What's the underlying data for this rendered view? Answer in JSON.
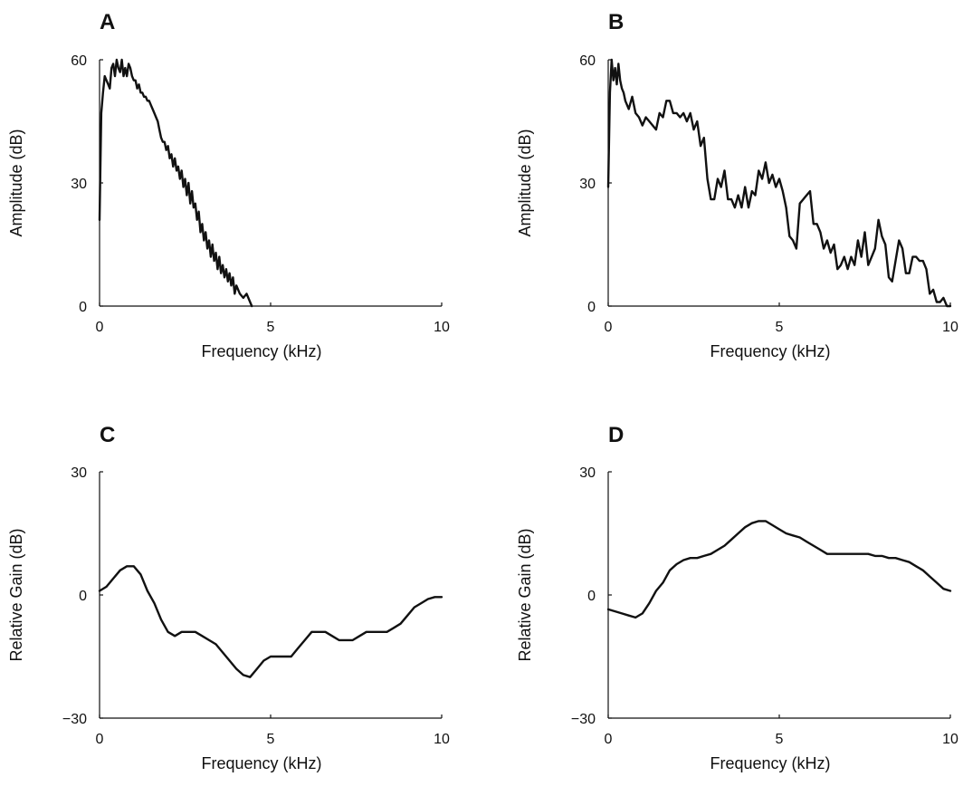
{
  "chart_data": [
    {
      "panel_label": "A",
      "type": "line",
      "xlabel": "Frequency (kHz)",
      "ylabel": "Amplitude (dB)",
      "xlim": [
        0,
        10
      ],
      "ylim": [
        0,
        60
      ],
      "xticks": [
        "0",
        "5",
        "10"
      ],
      "yticks": [
        "0",
        "30",
        "60"
      ],
      "grid": false,
      "series": [
        {
          "x": [
            0.0,
            0.05,
            0.1,
            0.15,
            0.2,
            0.25,
            0.3,
            0.35,
            0.4,
            0.45,
            0.5,
            0.55,
            0.6,
            0.65,
            0.7,
            0.75,
            0.8,
            0.85,
            0.9,
            0.95,
            1.0,
            1.05,
            1.1,
            1.15,
            1.2,
            1.25,
            1.3,
            1.35,
            1.4,
            1.45,
            1.5,
            1.55,
            1.6,
            1.65,
            1.7,
            1.75,
            1.8,
            1.85,
            1.9,
            1.95,
            2.0,
            2.05,
            2.1,
            2.15,
            2.2,
            2.25,
            2.3,
            2.35,
            2.4,
            2.45,
            2.5,
            2.55,
            2.6,
            2.65,
            2.7,
            2.75,
            2.8,
            2.85,
            2.9,
            2.95,
            3.0,
            3.05,
            3.1,
            3.15,
            3.2,
            3.25,
            3.3,
            3.35,
            3.4,
            3.45,
            3.5,
            3.55,
            3.6,
            3.65,
            3.7,
            3.75,
            3.8,
            3.85,
            3.9,
            3.95,
            4.0,
            4.1,
            4.2,
            4.3,
            4.4,
            4.45
          ],
          "values": [
            21,
            47,
            52,
            56,
            55,
            54,
            53,
            58,
            59,
            56,
            60,
            58,
            57,
            60,
            56,
            58,
            56,
            59,
            58,
            56,
            55,
            55,
            53,
            54,
            52,
            52,
            51,
            51,
            50,
            50,
            49,
            48,
            47,
            46,
            45,
            43,
            41,
            40,
            40,
            38,
            39,
            36,
            37,
            34,
            36,
            33,
            34,
            31,
            33,
            29,
            31,
            27,
            30,
            25,
            28,
            24,
            25,
            21,
            23,
            18,
            20,
            16,
            18,
            14,
            16,
            12,
            15,
            11,
            13,
            9,
            12,
            8,
            10,
            7,
            9,
            6,
            8,
            5,
            7,
            3,
            5,
            3,
            2,
            3,
            1,
            0
          ]
        }
      ]
    },
    {
      "panel_label": "B",
      "type": "line",
      "xlabel": "Frequency (kHz)",
      "ylabel": "Amplitude (dB)",
      "xlim": [
        0,
        10
      ],
      "ylim": [
        0,
        60
      ],
      "xticks": [
        "0",
        "5",
        "10"
      ],
      "yticks": [
        "0",
        "30",
        "60"
      ],
      "grid": false,
      "series": [
        {
          "x": [
            0.0,
            0.05,
            0.1,
            0.15,
            0.2,
            0.25,
            0.3,
            0.35,
            0.4,
            0.45,
            0.5,
            0.6,
            0.7,
            0.8,
            0.9,
            1.0,
            1.1,
            1.2,
            1.3,
            1.4,
            1.5,
            1.6,
            1.7,
            1.8,
            1.9,
            2.0,
            2.1,
            2.2,
            2.3,
            2.4,
            2.5,
            2.6,
            2.7,
            2.8,
            2.9,
            3.0,
            3.1,
            3.2,
            3.3,
            3.4,
            3.5,
            3.6,
            3.7,
            3.8,
            3.9,
            4.0,
            4.1,
            4.2,
            4.3,
            4.4,
            4.5,
            4.6,
            4.7,
            4.8,
            4.9,
            5.0,
            5.1,
            5.2,
            5.3,
            5.4,
            5.5,
            5.6,
            5.7,
            5.8,
            5.9,
            6.0,
            6.1,
            6.2,
            6.3,
            6.4,
            6.5,
            6.6,
            6.7,
            6.8,
            6.9,
            7.0,
            7.1,
            7.2,
            7.3,
            7.4,
            7.5,
            7.6,
            7.7,
            7.8,
            7.9,
            8.0,
            8.1,
            8.2,
            8.3,
            8.4,
            8.5,
            8.6,
            8.7,
            8.8,
            8.9,
            9.0,
            9.1,
            9.2,
            9.3,
            9.4,
            9.5,
            9.6,
            9.7,
            9.8,
            9.9,
            10.0
          ],
          "values": [
            29,
            52,
            60,
            55,
            58,
            54,
            59,
            55,
            53,
            52,
            50,
            48,
            51,
            47,
            46,
            44,
            46,
            45,
            44,
            43,
            47,
            46,
            50,
            50,
            47,
            47,
            46,
            47,
            45,
            47,
            43,
            45,
            39,
            41,
            31,
            26,
            26,
            31,
            29,
            33,
            26,
            26,
            24,
            27,
            24,
            29,
            24,
            28,
            27,
            33,
            31,
            35,
            30,
            32,
            29,
            31,
            28,
            24,
            17,
            16,
            14,
            25,
            26,
            27,
            28,
            20,
            20,
            18,
            14,
            16,
            13,
            15,
            9,
            10,
            12,
            9,
            12,
            10,
            16,
            12,
            18,
            10,
            12,
            14,
            21,
            17,
            15,
            7,
            6,
            11,
            16,
            14,
            8,
            8,
            12,
            12,
            11,
            11,
            9,
            3,
            4,
            1,
            1,
            2,
            0,
            0
          ]
        }
      ]
    },
    {
      "panel_label": "C",
      "type": "line",
      "xlabel": "Frequency (kHz)",
      "ylabel": "Relative Gain (dB)",
      "xlim": [
        0,
        10
      ],
      "ylim": [
        -30,
        30
      ],
      "xticks": [
        "0",
        "5",
        "10"
      ],
      "yticks": [
        "−30",
        "0",
        "30"
      ],
      "grid": false,
      "series": [
        {
          "x": [
            0.0,
            0.2,
            0.4,
            0.6,
            0.8,
            1.0,
            1.1,
            1.2,
            1.4,
            1.6,
            1.8,
            2.0,
            2.2,
            2.4,
            2.6,
            2.8,
            3.0,
            3.2,
            3.4,
            3.6,
            3.8,
            4.0,
            4.2,
            4.4,
            4.6,
            4.8,
            5.0,
            5.2,
            5.4,
            5.6,
            5.8,
            6.0,
            6.2,
            6.4,
            6.6,
            6.8,
            7.0,
            7.2,
            7.4,
            7.6,
            7.8,
            8.0,
            8.2,
            8.4,
            8.6,
            8.8,
            9.0,
            9.2,
            9.4,
            9.6,
            9.8,
            10.0
          ],
          "values": [
            1,
            2,
            4,
            6,
            7,
            7,
            6,
            5,
            1,
            -2,
            -6,
            -9,
            -10,
            -9,
            -9,
            -9,
            -10,
            -11,
            -12,
            -14,
            -16,
            -18,
            -19.5,
            -20,
            -18,
            -16,
            -15,
            -15,
            -15,
            -15,
            -13,
            -11,
            -9,
            -9,
            -9,
            -10,
            -11,
            -11,
            -11,
            -10,
            -9,
            -9,
            -9,
            -9,
            -8,
            -7,
            -5,
            -3,
            -2,
            -1,
            -0.5,
            -0.5
          ]
        }
      ]
    },
    {
      "panel_label": "D",
      "type": "line",
      "xlabel": "Frequency (kHz)",
      "ylabel": "Relative Gain (dB)",
      "xlim": [
        0,
        10
      ],
      "ylim": [
        -30,
        30
      ],
      "xticks": [
        "0",
        "5",
        "10"
      ],
      "yticks": [
        "−30",
        "0",
        "30"
      ],
      "grid": false,
      "series": [
        {
          "x": [
            0.0,
            0.2,
            0.4,
            0.6,
            0.8,
            1.0,
            1.2,
            1.4,
            1.6,
            1.8,
            2.0,
            2.2,
            2.4,
            2.6,
            2.8,
            3.0,
            3.2,
            3.4,
            3.6,
            3.8,
            4.0,
            4.2,
            4.4,
            4.6,
            4.8,
            5.0,
            5.2,
            5.4,
            5.6,
            5.8,
            6.0,
            6.2,
            6.4,
            6.6,
            6.8,
            7.0,
            7.2,
            7.4,
            7.6,
            7.8,
            8.0,
            8.2,
            8.4,
            8.6,
            8.8,
            9.0,
            9.2,
            9.4,
            9.6,
            9.8,
            10.0
          ],
          "values": [
            -3.5,
            -4,
            -4.5,
            -5,
            -5.5,
            -4.5,
            -2,
            1,
            3,
            6,
            7.5,
            8.5,
            9,
            9,
            9.5,
            10,
            11,
            12,
            13.5,
            15,
            16.5,
            17.5,
            18,
            18,
            17,
            16,
            15,
            14.5,
            14,
            13,
            12,
            11,
            10,
            10,
            10,
            10,
            10,
            10,
            10,
            9.5,
            9.5,
            9,
            9,
            8.5,
            8,
            7,
            6,
            4.5,
            3,
            1.5,
            1
          ]
        }
      ]
    }
  ]
}
